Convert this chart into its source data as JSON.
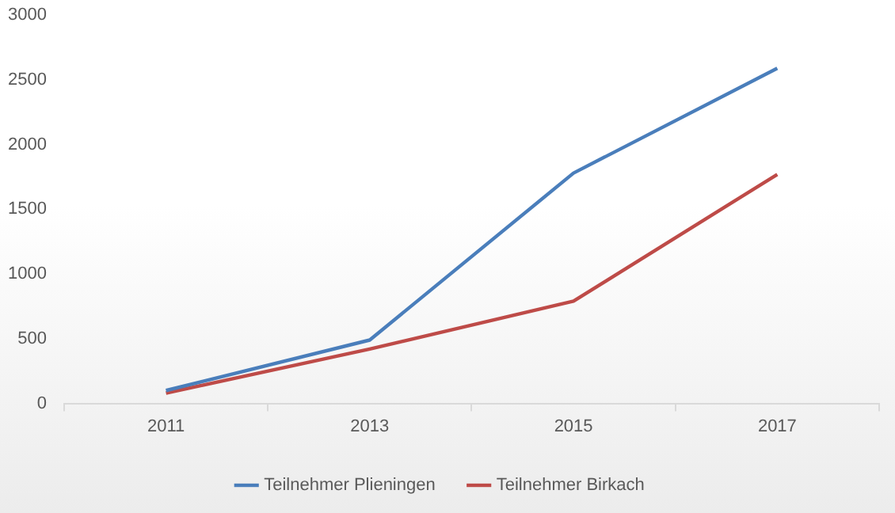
{
  "chart_data": {
    "type": "line",
    "categories": [
      "2011",
      "2013",
      "2015",
      "2017"
    ],
    "series": [
      {
        "name": "Teilnehmer Plieningen",
        "color": "#4a7ebb",
        "values": [
          100,
          490,
          1780,
          2590
        ]
      },
      {
        "name": "Teilnehmer Birkach",
        "color": "#be4b48",
        "values": [
          80,
          420,
          790,
          1770
        ]
      }
    ],
    "ylim": [
      0,
      3000
    ],
    "yticks": [
      0,
      500,
      1000,
      1500,
      2000,
      2500,
      3000
    ],
    "grid": false,
    "legend": "bottom",
    "marker": "none",
    "line_style": "solid"
  }
}
